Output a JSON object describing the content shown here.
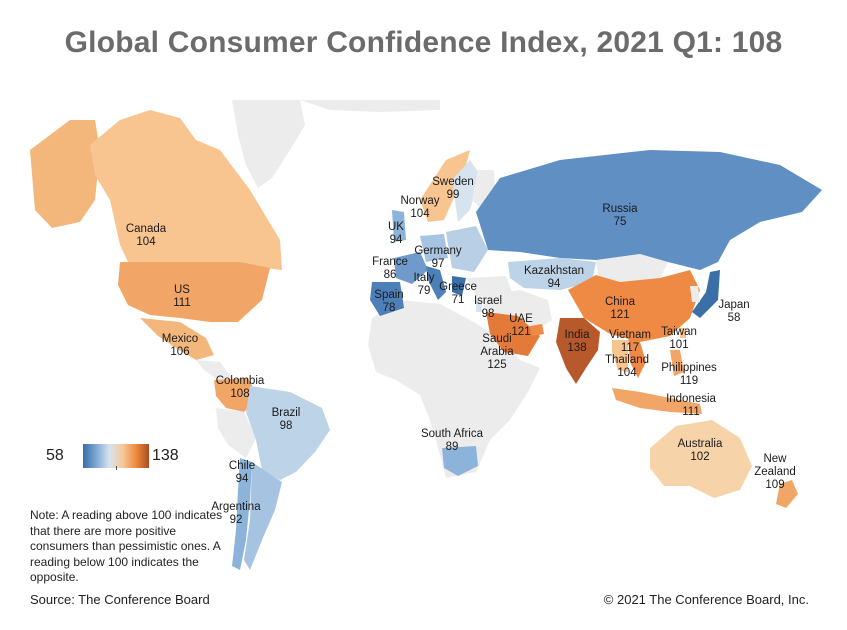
{
  "title": "Global Consumer Confidence Index, 2021 Q1: 108",
  "legend": {
    "min": "58",
    "max": "138"
  },
  "note": "Note: A reading above 100 indicates that there are more positive consumers than pessimistic ones. A reading below 100 indicates the opposite.",
  "source": "Source: The Conference Board",
  "copyright": "© 2021 The Conference Board, Inc.",
  "colors": {
    "lowest": "#3a6fa8",
    "low": "#7ea7d3",
    "mid": "#d7e3ef",
    "high": "#f4c89b",
    "higher": "#f08a3d",
    "highest": "#a84e24",
    "no_data": "#ececec"
  },
  "countries": [
    {
      "name": "Canada",
      "value": "104"
    },
    {
      "name": "US",
      "value": "111"
    },
    {
      "name": "Mexico",
      "value": "106"
    },
    {
      "name": "Colombia",
      "value": "108"
    },
    {
      "name": "Brazil",
      "value": "98"
    },
    {
      "name": "Chile",
      "value": "94"
    },
    {
      "name": "Argentina",
      "value": "92"
    },
    {
      "name": "Sweden",
      "value": "99"
    },
    {
      "name": "Norway",
      "value": "104"
    },
    {
      "name": "UK",
      "value": "94"
    },
    {
      "name": "Germany",
      "value": "97"
    },
    {
      "name": "France",
      "value": "86"
    },
    {
      "name": "Italy",
      "value": "79"
    },
    {
      "name": "Spain",
      "value": "78"
    },
    {
      "name": "Greece",
      "value": "71"
    },
    {
      "name": "Russia",
      "value": "75"
    },
    {
      "name": "Kazakhstan",
      "value": "94"
    },
    {
      "name": "Israel",
      "value": "98"
    },
    {
      "name": "UAE",
      "value": "121"
    },
    {
      "name": "Saudi Arabia",
      "value": "125"
    },
    {
      "name": "India",
      "value": "138"
    },
    {
      "name": "China",
      "value": "121"
    },
    {
      "name": "Japan",
      "value": "58"
    },
    {
      "name": "Taiwan",
      "value": "101"
    },
    {
      "name": "Vietnam",
      "value": "117"
    },
    {
      "name": "Thailand",
      "value": "104"
    },
    {
      "name": "Philippines",
      "value": "119"
    },
    {
      "name": "Indonesia",
      "value": "111"
    },
    {
      "name": "South Africa",
      "value": "89"
    },
    {
      "name": "Australia",
      "value": "102"
    },
    {
      "name": "New Zealand",
      "value": "109"
    }
  ]
}
